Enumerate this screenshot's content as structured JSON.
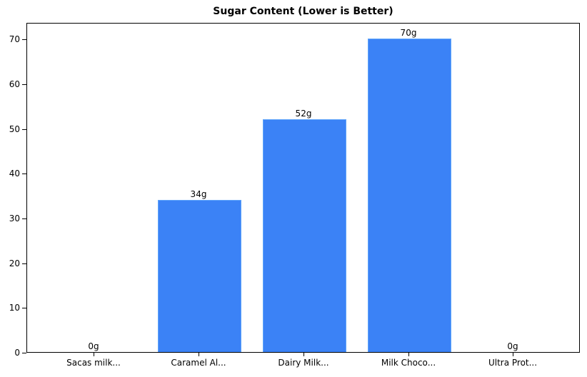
{
  "chart_data": {
    "type": "bar",
    "title": "Sugar Content (Lower is Better)",
    "xlabel": "",
    "ylabel": "",
    "categories": [
      "Sacas milk...",
      "Caramel Al...",
      "Dairy Milk...",
      "Milk Choco...",
      "Ultra Prot..."
    ],
    "values": [
      0,
      34,
      52,
      70,
      0
    ],
    "value_labels": [
      "0g",
      "34g",
      "52g",
      "70g",
      "0g"
    ],
    "ylim": [
      0,
      73.5
    ],
    "yticks": [
      0,
      10,
      20,
      30,
      40,
      50,
      60,
      70
    ],
    "grid": false,
    "legend": null,
    "bar_color": "#3b82f6"
  }
}
